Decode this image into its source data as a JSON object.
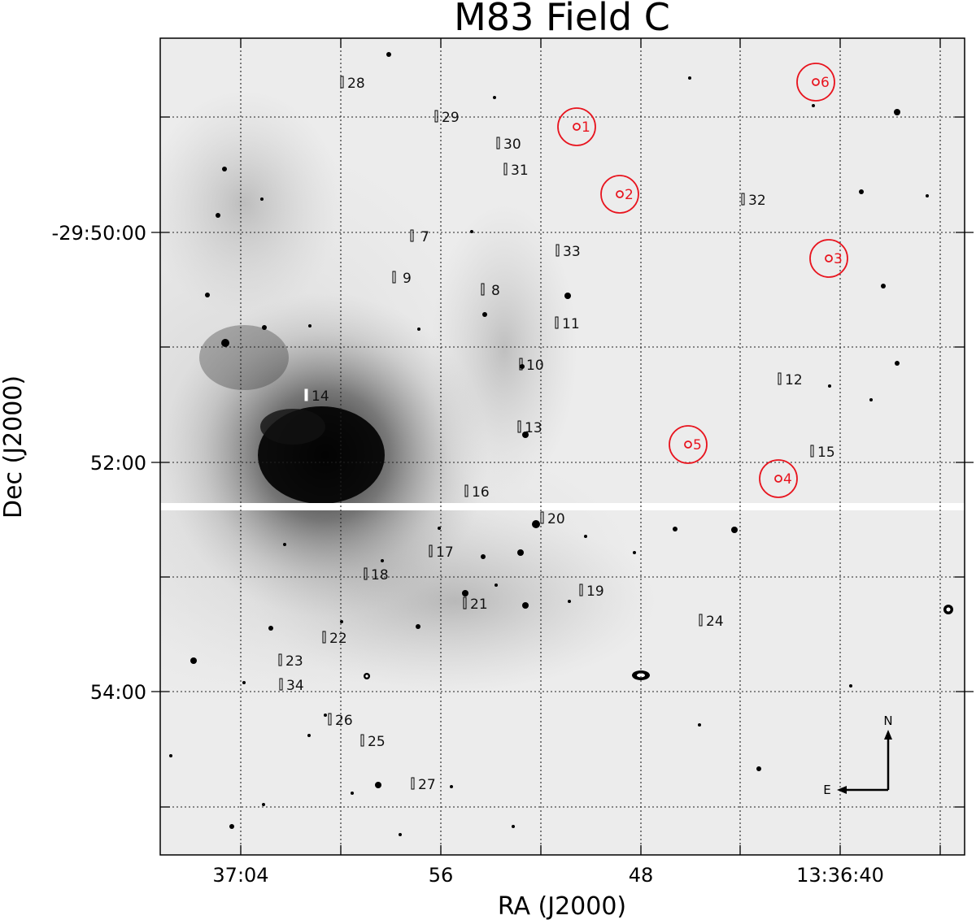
{
  "title": "M83 Field C",
  "xlabel": "RA (J2000)",
  "ylabel": "Dec (J2000)",
  "x_tick_labels": [
    "37:04",
    "56",
    "48",
    "13:36:40"
  ],
  "y_tick_labels": [
    "-29:50:00",
    "52:00",
    "54:00"
  ],
  "slits": [
    {
      "id": "28",
      "label": "28"
    },
    {
      "id": "29",
      "label": "29"
    },
    {
      "id": "30",
      "label": "30"
    },
    {
      "id": "31",
      "label": "31"
    },
    {
      "id": "32",
      "label": "32"
    },
    {
      "id": "7",
      "label": "7"
    },
    {
      "id": "33",
      "label": "33"
    },
    {
      "id": "9",
      "label": "9"
    },
    {
      "id": "8",
      "label": "8"
    },
    {
      "id": "11",
      "label": "11"
    },
    {
      "id": "10",
      "label": "10"
    },
    {
      "id": "12",
      "label": "12"
    },
    {
      "id": "14",
      "label": "14"
    },
    {
      "id": "13",
      "label": "13"
    },
    {
      "id": "15",
      "label": "15"
    },
    {
      "id": "16",
      "label": "16"
    },
    {
      "id": "20",
      "label": "20"
    },
    {
      "id": "17",
      "label": "17"
    },
    {
      "id": "18",
      "label": "18"
    },
    {
      "id": "19",
      "label": "19"
    },
    {
      "id": "21",
      "label": "21"
    },
    {
      "id": "24",
      "label": "24"
    },
    {
      "id": "22",
      "label": "22"
    },
    {
      "id": "23",
      "label": "23"
    },
    {
      "id": "34",
      "label": "34"
    },
    {
      "id": "26",
      "label": "26"
    },
    {
      "id": "25",
      "label": "25"
    },
    {
      "id": "27",
      "label": "27"
    }
  ],
  "circled_sources": [
    {
      "id": "1",
      "label": "1"
    },
    {
      "id": "2",
      "label": "2"
    },
    {
      "id": "3",
      "label": "3"
    },
    {
      "id": "4",
      "label": "4"
    },
    {
      "id": "5",
      "label": "5"
    },
    {
      "id": "6",
      "label": "6"
    }
  ],
  "compass": {
    "north": "N",
    "east": "E"
  },
  "colors": {
    "circle": "#e8141e",
    "slit": "#000000",
    "image_background": "#eeeeee",
    "galaxy_core": "#000000"
  }
}
